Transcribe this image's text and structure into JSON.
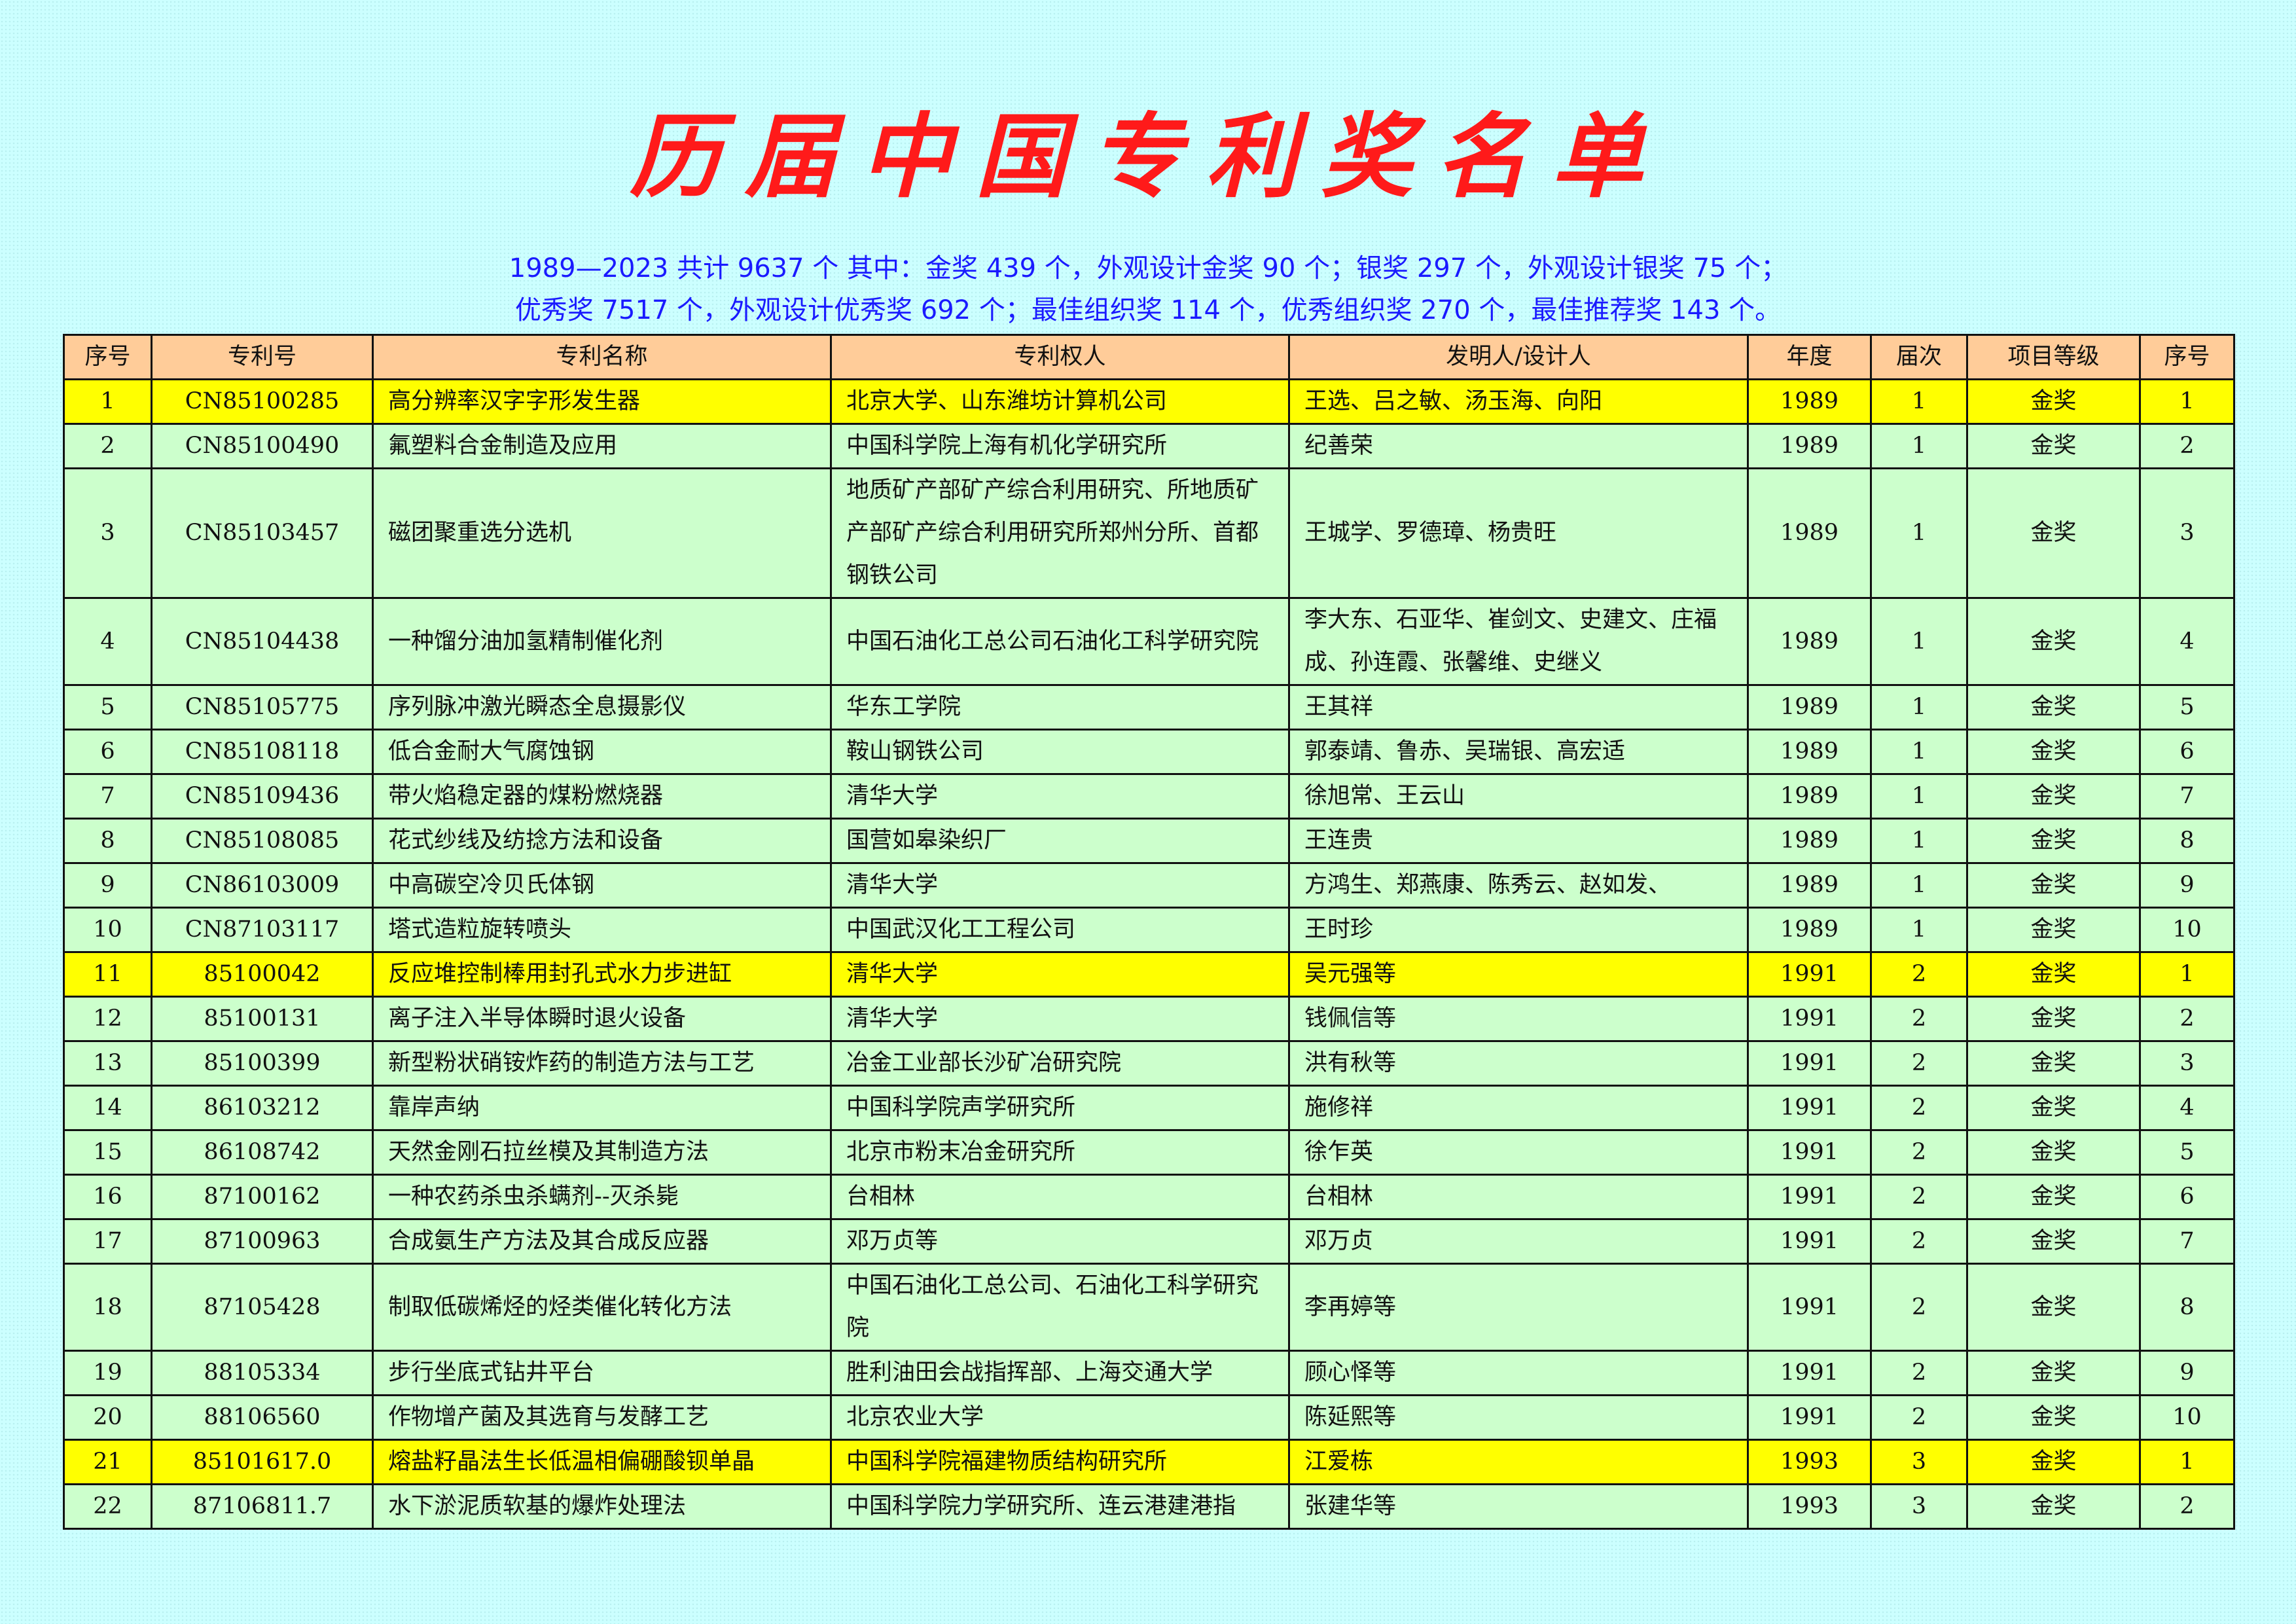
{
  "title": "历届中国专利奖名单",
  "summary": {
    "line1": "1989—2023 共计 9637 个 其中：金奖 439 个，外观设计金奖 90 个；银奖 297 个，外观设计银奖 75 个；",
    "line2": "优秀奖 7517 个，外观设计优秀奖 692 个；最佳组织奖 114 个，优秀组织奖 270 个，最佳推荐奖 143 个。"
  },
  "colors": {
    "title": "#ff1a1a",
    "summary": "#1a1aff",
    "header_bg": "#ffcc99",
    "row_bg": "#ccffcc",
    "highlight_bg": "#ffff00",
    "page_bg": "#ccffff"
  },
  "table": {
    "headers": [
      "序号",
      "专利号",
      "专利名称",
      "专利权人",
      "发明人/设计人",
      "年度",
      "届次",
      "项目等级",
      "序号"
    ],
    "rows": [
      {
        "no": "1",
        "patent_no": "CN85100285",
        "name": "高分辨率汉字字形发生器",
        "owner": "北京大学、山东潍坊计算机公司",
        "inventor": "王选、吕之敏、汤玉海、向阳",
        "year": "1989",
        "session": "1",
        "level": "金奖",
        "seq": "1",
        "highlight": true
      },
      {
        "no": "2",
        "patent_no": "CN85100490",
        "name": "氟塑料合金制造及应用",
        "owner": "中国科学院上海有机化学研究所",
        "inventor": "纪善荣",
        "year": "1989",
        "session": "1",
        "level": "金奖",
        "seq": "2"
      },
      {
        "no": "3",
        "patent_no": "CN85103457",
        "name": "磁团聚重选分选机",
        "owner": "地质矿产部矿产综合利用研究、所地质矿产部矿产综合利用研究所郑州分所、首都钢铁公司",
        "inventor": "王城学、罗德璋、杨贵旺",
        "year": "1989",
        "session": "1",
        "level": "金奖",
        "seq": "3"
      },
      {
        "no": "4",
        "patent_no": "CN85104438",
        "name": "一种馏分油加氢精制催化剂",
        "owner": "中国石油化工总公司石油化工科学研究院",
        "inventor": "李大东、石亚华、崔剑文、史建文、庄福成、孙连霞、张馨维、史继义",
        "year": "1989",
        "session": "1",
        "level": "金奖",
        "seq": "4"
      },
      {
        "no": "5",
        "patent_no": "CN85105775",
        "name": "序列脉冲激光瞬态全息摄影仪",
        "owner": "华东工学院",
        "inventor": "王其祥",
        "year": "1989",
        "session": "1",
        "level": "金奖",
        "seq": "5"
      },
      {
        "no": "6",
        "patent_no": "CN85108118",
        "name": "低合金耐大气腐蚀钢",
        "owner": "鞍山钢铁公司",
        "inventor": "郭泰靖、鲁赤、吴瑞银、高宏适",
        "year": "1989",
        "session": "1",
        "level": "金奖",
        "seq": "6"
      },
      {
        "no": "7",
        "patent_no": "CN85109436",
        "name": "带火焰稳定器的煤粉燃烧器",
        "owner": "清华大学",
        "inventor": "徐旭常、王云山",
        "year": "1989",
        "session": "1",
        "level": "金奖",
        "seq": "7"
      },
      {
        "no": "8",
        "patent_no": "CN85108085",
        "name": "花式纱线及纺捻方法和设备",
        "owner": "国营如皋染织厂",
        "inventor": "王连贵",
        "year": "1989",
        "session": "1",
        "level": "金奖",
        "seq": "8"
      },
      {
        "no": "9",
        "patent_no": "CN86103009",
        "name": "中高碳空冷贝氏体钢",
        "owner": "清华大学",
        "inventor": "方鸿生、郑燕康、陈秀云、赵如发、",
        "year": "1989",
        "session": "1",
        "level": "金奖",
        "seq": "9"
      },
      {
        "no": "10",
        "patent_no": "CN87103117",
        "name": "塔式造粒旋转喷头",
        "owner": "中国武汉化工工程公司",
        "inventor": "王时珍",
        "year": "1989",
        "session": "1",
        "level": "金奖",
        "seq": "10"
      },
      {
        "no": "11",
        "patent_no": "85100042",
        "name": "反应堆控制棒用封孔式水力步进缸",
        "owner": "清华大学",
        "inventor": "吴元强等",
        "year": "1991",
        "session": "2",
        "level": "金奖",
        "seq": "1",
        "highlight": true
      },
      {
        "no": "12",
        "patent_no": "85100131",
        "name": "离子注入半导体瞬时退火设备",
        "owner": "清华大学",
        "inventor": "钱佩信等",
        "year": "1991",
        "session": "2",
        "level": "金奖",
        "seq": "2"
      },
      {
        "no": "13",
        "patent_no": "85100399",
        "name": "新型粉状硝铵炸药的制造方法与工艺",
        "owner": "冶金工业部长沙矿冶研究院",
        "inventor": "洪有秋等",
        "year": "1991",
        "session": "2",
        "level": "金奖",
        "seq": "3"
      },
      {
        "no": "14",
        "patent_no": "86103212",
        "name": "靠岸声纳",
        "owner": "中国科学院声学研究所",
        "inventor": "施修祥",
        "year": "1991",
        "session": "2",
        "level": "金奖",
        "seq": "4"
      },
      {
        "no": "15",
        "patent_no": "86108742",
        "name": "天然金刚石拉丝模及其制造方法",
        "owner": "北京市粉末冶金研究所",
        "inventor": "徐乍英",
        "year": "1991",
        "session": "2",
        "level": "金奖",
        "seq": "5"
      },
      {
        "no": "16",
        "patent_no": "87100162",
        "name": "一种农药杀虫杀螨剂--灭杀毙",
        "owner": "台相林",
        "inventor": "台相林",
        "year": "1991",
        "session": "2",
        "level": "金奖",
        "seq": "6"
      },
      {
        "no": "17",
        "patent_no": "87100963",
        "name": "合成氨生产方法及其合成反应器",
        "owner": "邓万贞等",
        "inventor": "邓万贞",
        "year": "1991",
        "session": "2",
        "level": "金奖",
        "seq": "7"
      },
      {
        "no": "18",
        "patent_no": "87105428",
        "name": "制取低碳烯烃的烃类催化转化方法",
        "owner": "中国石油化工总公司、石油化工科学研究院",
        "inventor": "李再婷等",
        "year": "1991",
        "session": "2",
        "level": "金奖",
        "seq": "8"
      },
      {
        "no": "19",
        "patent_no": "88105334",
        "name": "步行坐底式钻井平台",
        "owner": "胜利油田会战指挥部、上海交通大学",
        "inventor": "顾心怿等",
        "year": "1991",
        "session": "2",
        "level": "金奖",
        "seq": "9"
      },
      {
        "no": "20",
        "patent_no": "88106560",
        "name": "作物增产菌及其选育与发酵工艺",
        "owner": "北京农业大学",
        "inventor": "陈延熙等",
        "year": "1991",
        "session": "2",
        "level": "金奖",
        "seq": "10"
      },
      {
        "no": "21",
        "patent_no": "85101617.0",
        "name": "熔盐籽晶法生长低温相偏硼酸钡单晶",
        "owner": "中国科学院福建物质结构研究所",
        "inventor": "江爱栋",
        "year": "1993",
        "session": "3",
        "level": "金奖",
        "seq": "1",
        "highlight": true
      },
      {
        "no": "22",
        "patent_no": "87106811.7",
        "name": "水下淤泥质软基的爆炸处理法",
        "owner": "中国科学院力学研究所、连云港建港指",
        "inventor": "张建华等",
        "year": "1993",
        "session": "3",
        "level": "金奖",
        "seq": "2"
      }
    ]
  }
}
